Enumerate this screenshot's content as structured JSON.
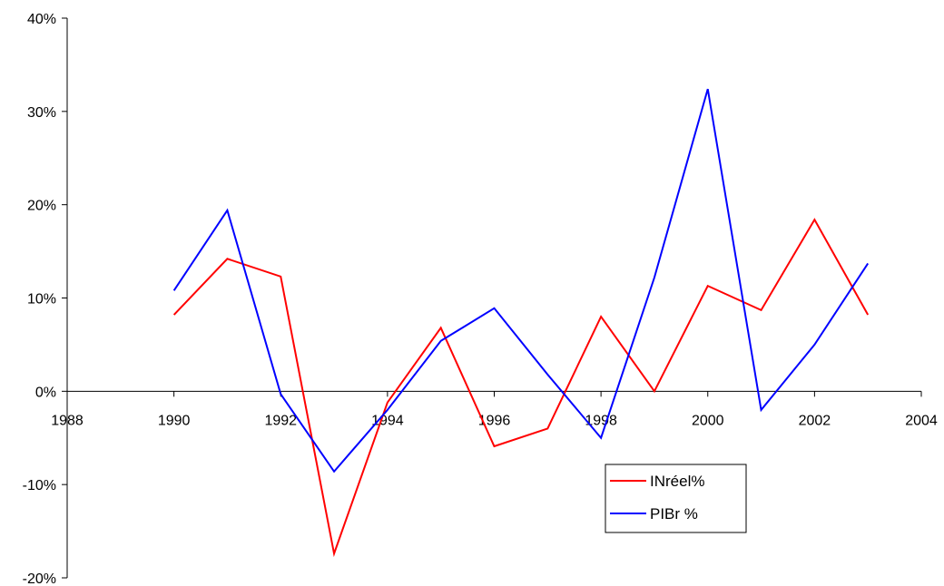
{
  "chart_data": {
    "type": "line",
    "title": "",
    "xlabel": "",
    "ylabel": "",
    "xlim": [
      1988,
      2004
    ],
    "ylim": [
      -0.2,
      0.4
    ],
    "x_ticks": [
      1988,
      1990,
      1992,
      1994,
      1996,
      1998,
      2000,
      2002,
      2004
    ],
    "y_ticks": [
      -0.2,
      -0.1,
      0,
      0.1,
      0.2,
      0.3,
      0.4
    ],
    "y_tick_labels": [
      "-20%",
      "-10%",
      "0%",
      "10%",
      "20%",
      "30%",
      "40%"
    ],
    "grid": false,
    "legend_position": "bottom-right",
    "x": [
      1990,
      1991,
      1992,
      1993,
      1994,
      1995,
      1996,
      1997,
      1998,
      1999,
      2000,
      2001,
      2002,
      2003
    ],
    "series": [
      {
        "name": "INréel%",
        "color": "#ff0000",
        "values": [
          0.082,
          0.142,
          0.123,
          -0.174,
          -0.012,
          0.068,
          -0.059,
          -0.04,
          0.08,
          0.0,
          0.113,
          0.087,
          0.184,
          0.082
        ]
      },
      {
        "name": "PIBr %",
        "color": "#0000ff",
        "values": [
          0.108,
          0.194,
          -0.003,
          -0.086,
          -0.02,
          0.054,
          0.089,
          0.018,
          -0.05,
          0.122,
          0.324,
          -0.02,
          0.05,
          0.137
        ]
      }
    ]
  }
}
